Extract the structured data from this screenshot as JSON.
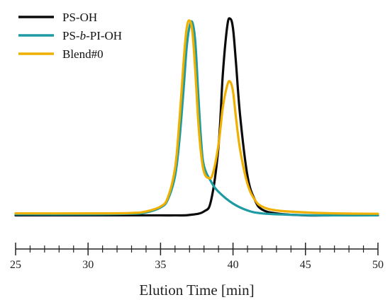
{
  "chart_data": {
    "type": "line",
    "xlabel": "Elution Time [min]",
    "ylabel": "",
    "xlim": [
      25,
      50
    ],
    "ylim": [
      -0.02,
      1.03
    ],
    "x_ticks": [
      25,
      30,
      35,
      40,
      45,
      50
    ],
    "x_tick_labels": [
      "25",
      "30",
      "35",
      "40",
      "45",
      "50"
    ],
    "x_minor_step": 1,
    "y_axis_visible": false,
    "grid": false,
    "legend_position": "top-left",
    "legend": [
      {
        "prefix": "PS-",
        "italic": "",
        "suffix": "OH",
        "color": "#0a0a0a"
      },
      {
        "prefix": "PS-",
        "italic": "b",
        "suffix": "-PI-OH",
        "color": "#1e9aa2"
      },
      {
        "prefix": "Blend#0",
        "italic": "",
        "suffix": "",
        "color": "#efb000"
      }
    ],
    "series": [
      {
        "name": "PS-OH",
        "color": "#0a0a0a",
        "x": [
          25,
          30,
          33,
          35,
          36,
          37,
          38,
          38.5,
          39,
          39.3,
          39.6,
          39.8,
          40.0,
          40.2,
          40.5,
          41,
          41.5,
          42,
          43,
          45,
          47,
          50
        ],
        "y": [
          0.0,
          0.0,
          0.0,
          0.0,
          0.0,
          0.002,
          0.02,
          0.08,
          0.35,
          0.72,
          0.96,
          1.0,
          0.95,
          0.78,
          0.5,
          0.2,
          0.08,
          0.03,
          0.01,
          0.0,
          0.0,
          0.0
        ]
      },
      {
        "name": "PS-b-PI-OH",
        "color": "#1e9aa2",
        "x": [
          25,
          30,
          33,
          34,
          35,
          35.5,
          36,
          36.3,
          36.6,
          36.8,
          37.0,
          37.2,
          37.4,
          37.6,
          37.8,
          38.0,
          38.5,
          39,
          40,
          41,
          42,
          44,
          46,
          50
        ],
        "y": [
          0.005,
          0.005,
          0.008,
          0.015,
          0.04,
          0.08,
          0.2,
          0.38,
          0.65,
          0.85,
          0.96,
          0.98,
          0.88,
          0.62,
          0.38,
          0.25,
          0.17,
          0.12,
          0.06,
          0.025,
          0.01,
          0.003,
          0.0,
          0.0
        ]
      },
      {
        "name": "Blend#0",
        "color": "#efb000",
        "x": [
          25,
          30,
          33,
          34,
          35,
          35.5,
          36,
          36.3,
          36.6,
          36.8,
          37.0,
          37.2,
          37.4,
          37.6,
          37.8,
          38.0,
          38.3,
          38.6,
          39.0,
          39.3,
          39.6,
          39.8,
          40.0,
          40.2,
          40.5,
          41,
          41.5,
          42,
          43,
          45,
          47,
          50
        ],
        "y": [
          0.01,
          0.01,
          0.012,
          0.02,
          0.045,
          0.09,
          0.24,
          0.48,
          0.79,
          0.95,
          0.99,
          0.93,
          0.73,
          0.48,
          0.31,
          0.22,
          0.19,
          0.21,
          0.36,
          0.55,
          0.66,
          0.68,
          0.63,
          0.5,
          0.33,
          0.16,
          0.08,
          0.045,
          0.025,
          0.015,
          0.01,
          0.008
        ]
      }
    ]
  }
}
